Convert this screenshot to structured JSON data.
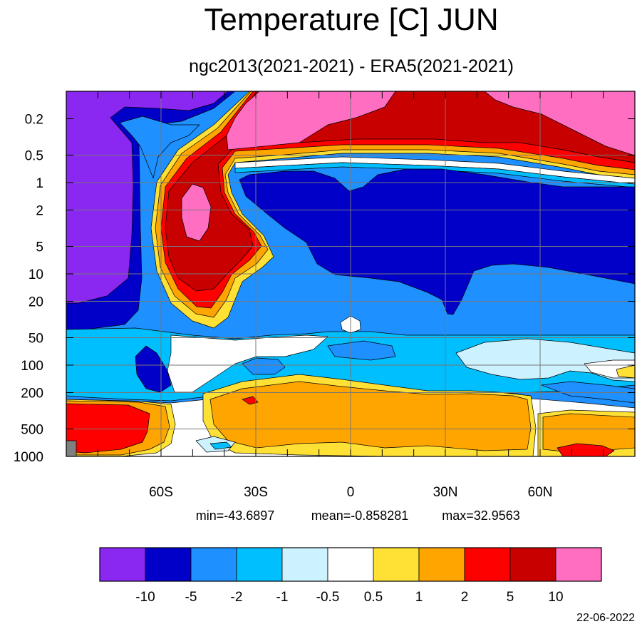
{
  "chart_data": {
    "type": "heatmap",
    "title": "Temperature [C] JUN",
    "subtitle": "ngc2013(2021-2021) - ERA5(2021-2021)",
    "x_ticks": [
      "60S",
      "30S",
      "0",
      "30N",
      "60N"
    ],
    "x_tick_values": [
      -60,
      -30,
      0,
      30,
      60
    ],
    "xlim": [
      -90,
      90
    ],
    "y_ticks": [
      "0.2",
      "0.5",
      "1",
      "2",
      "5",
      "10",
      "20",
      "50",
      "100",
      "200",
      "500",
      "1000"
    ],
    "y_tick_values": [
      0.2,
      0.5,
      1,
      2,
      5,
      10,
      20,
      50,
      100,
      200,
      500,
      1000
    ],
    "ylim": [
      0.1,
      1000
    ],
    "y_scale": "log",
    "y_inverted": true,
    "grid": true,
    "stats": {
      "min_label": "min=-43.6897",
      "mean_label": "mean=-0.858281",
      "max_label": "max=32.9563",
      "min": -43.6897,
      "mean": -0.858281,
      "max": 32.9563
    },
    "colorbar": {
      "levels": [
        "-10",
        "-5",
        "-2",
        "-1",
        "-0.5",
        "0.5",
        "1",
        "2",
        "5",
        "10"
      ],
      "colors": [
        "#8a27f0",
        "#0000c8",
        "#1e90ff",
        "#00bfff",
        "#cdf2ff",
        "#ffffff",
        "#ffe135",
        "#ffa500",
        "#ff0000",
        "#c80000",
        "#ff6ec1"
      ]
    },
    "missing_color": "#808080"
  },
  "footer": {
    "date": "22-06-2022"
  }
}
